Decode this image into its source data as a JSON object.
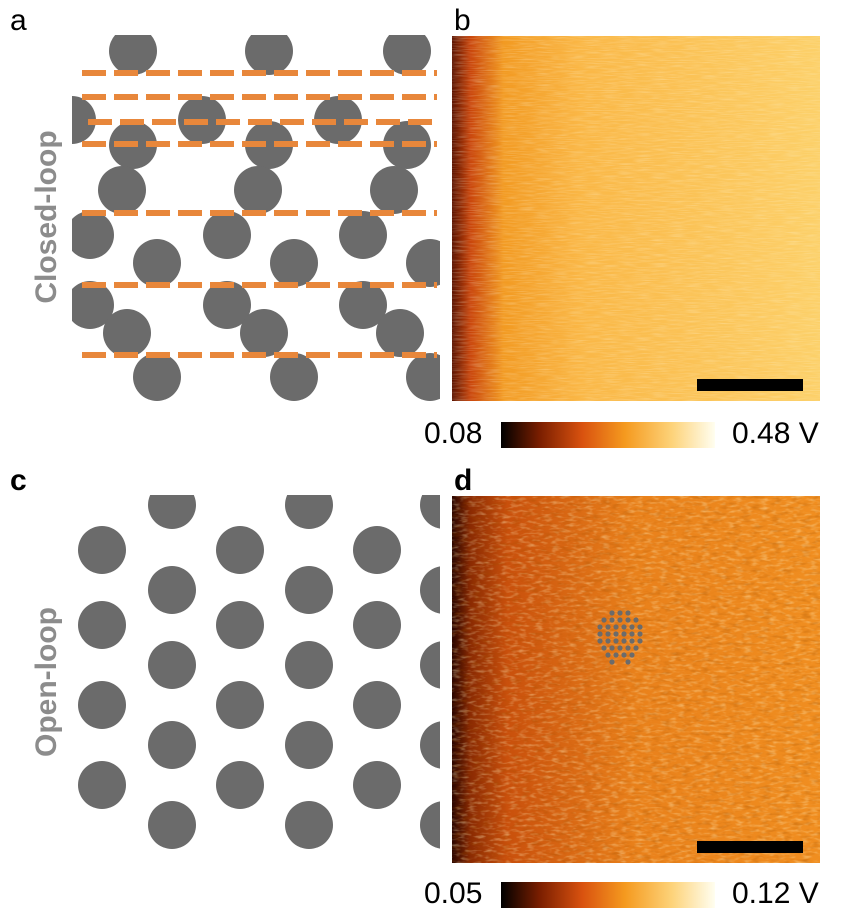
{
  "panels": {
    "a": {
      "letter": "a"
    },
    "b": {
      "letter": "b"
    },
    "c": {
      "letter": "c"
    },
    "d": {
      "letter": "d"
    }
  },
  "side_labels": {
    "top": "Closed-loop",
    "bottom": "Open-loop"
  },
  "colorbars": {
    "top": {
      "min_label": "0.08",
      "max_label": "0.48 V"
    },
    "bottom": {
      "min_label": "0.05",
      "max_label": "0.12 V"
    }
  },
  "colors": {
    "dot": "#6b6b6b",
    "dashed_line": "#e8873b",
    "label_gray": "#8c8c8c",
    "colormap": [
      "#000000",
      "#7a1e00",
      "#d9520f",
      "#f59a1f",
      "#fdd37a",
      "#fffef0"
    ]
  }
}
